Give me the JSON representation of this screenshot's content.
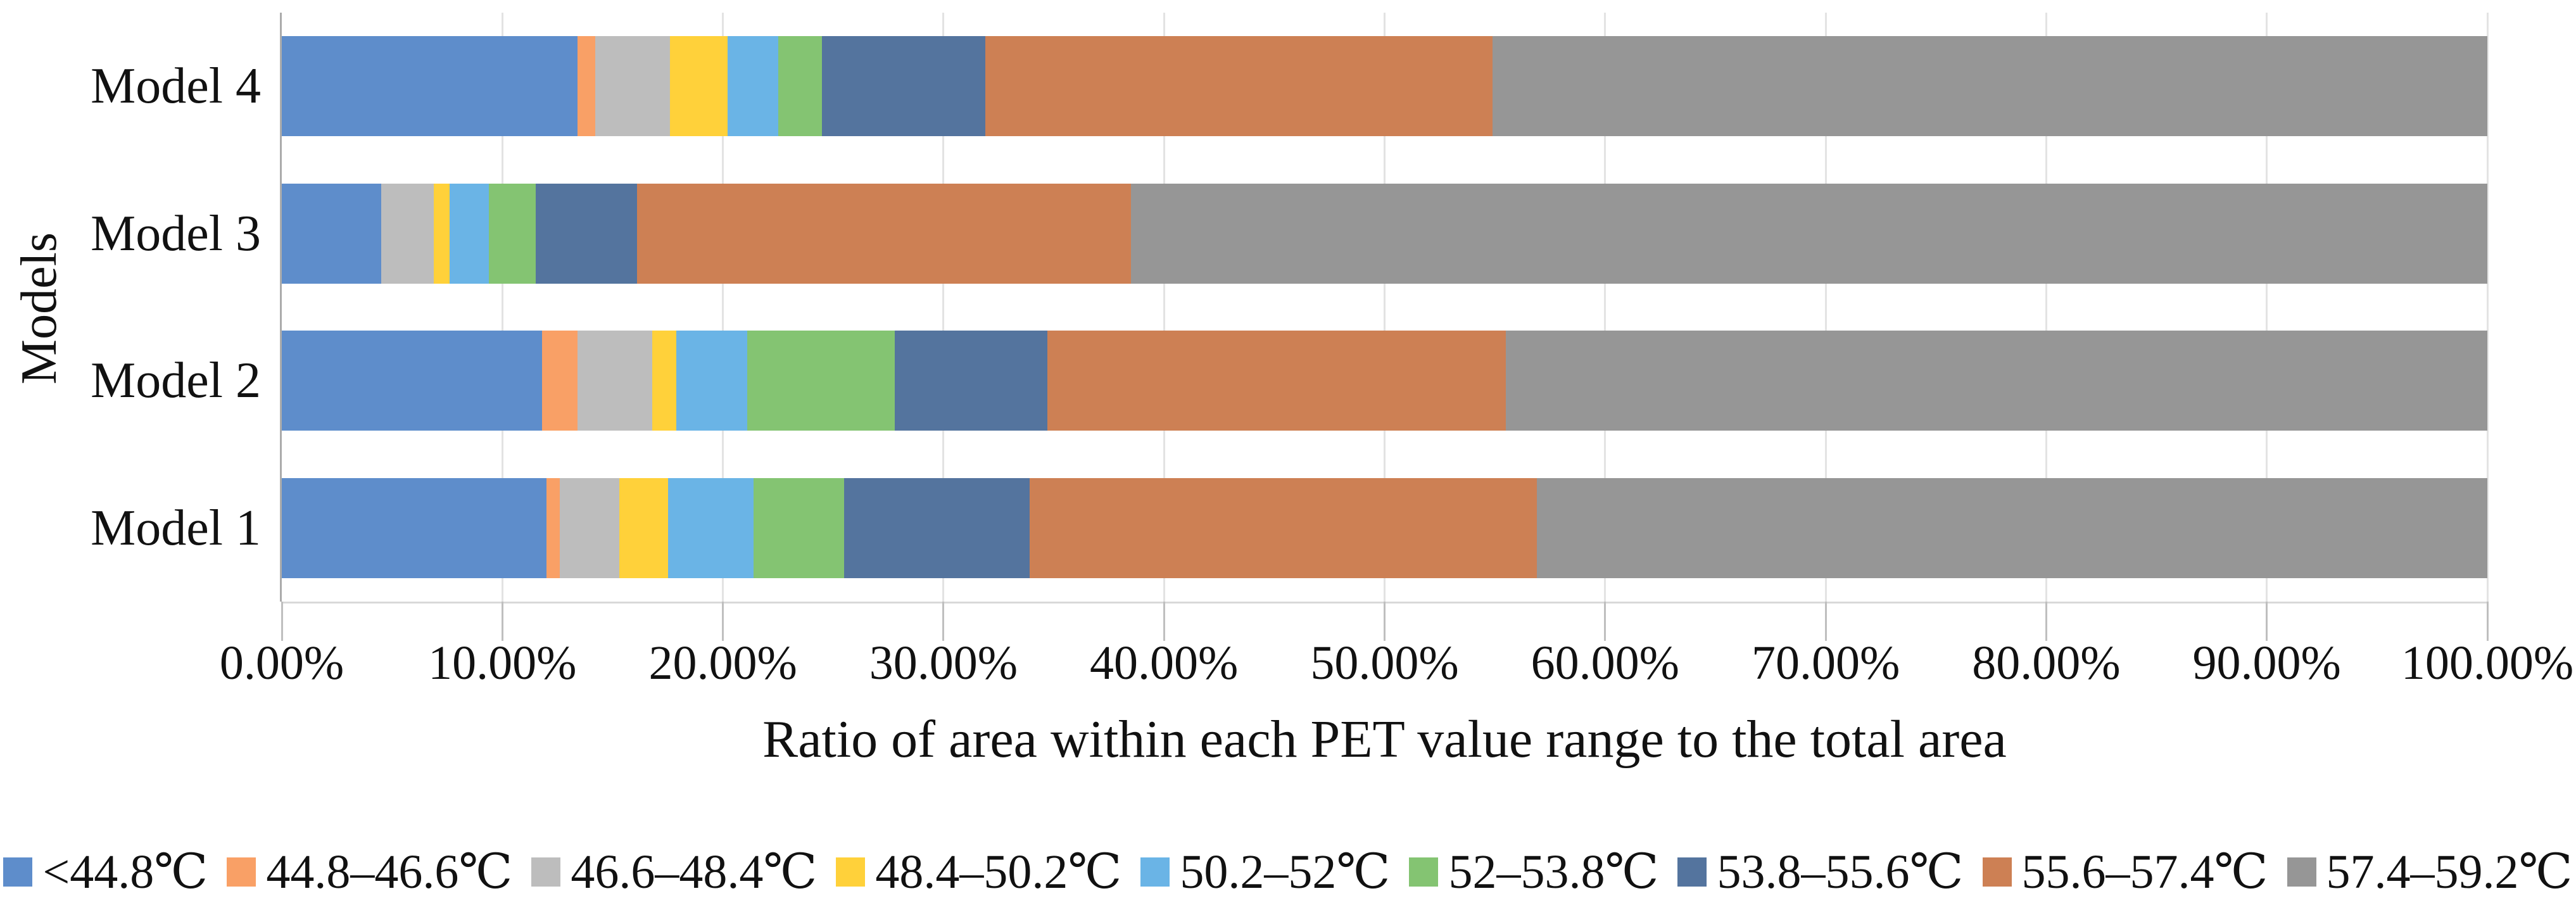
{
  "chart_data": {
    "type": "bar",
    "orientation": "horizontal-stacked-100pct",
    "title": "",
    "xlabel": "Ratio of area within each PET value range to the total area",
    "ylabel": "Models",
    "categories": [
      "Model 4",
      "Model 3",
      "Model 2",
      "Model 1"
    ],
    "x_ticks": [
      "0.00%",
      "10.00%",
      "20.00%",
      "30.00%",
      "40.00%",
      "50.00%",
      "60.00%",
      "70.00%",
      "80.00%",
      "90.00%",
      "100.00%"
    ],
    "xlim": [
      0,
      100
    ],
    "grid": true,
    "legend_position": "bottom",
    "series": [
      {
        "name": "<44.8℃",
        "color": "#5E8DCB",
        "values": [
          13.4,
          4.5,
          11.8,
          12.0
        ]
      },
      {
        "name": "44.8–46.6℃",
        "color": "#F9A066",
        "values": [
          0.8,
          0.0,
          1.6,
          0.6
        ]
      },
      {
        "name": "46.6–48.4℃",
        "color": "#BDBDBD",
        "values": [
          3.4,
          2.4,
          3.4,
          2.7
        ]
      },
      {
        "name": "48.4–50.2℃",
        "color": "#FFD13A",
        "values": [
          2.6,
          0.7,
          1.1,
          2.2
        ]
      },
      {
        "name": "50.2–52℃",
        "color": "#6AB4E6",
        "values": [
          2.3,
          1.8,
          3.2,
          3.9
        ]
      },
      {
        "name": "52–53.8℃",
        "color": "#84C472",
        "values": [
          2.0,
          2.1,
          6.7,
          4.1
        ]
      },
      {
        "name": "53.8–55.6℃",
        "color": "#54749E",
        "values": [
          7.4,
          4.6,
          6.9,
          8.4
        ]
      },
      {
        "name": "55.6–57.4℃",
        "color": "#CD8054",
        "values": [
          23.0,
          22.4,
          20.8,
          23.0
        ]
      },
      {
        "name": "57.4–59.2℃",
        "color": "#969696",
        "values": [
          45.1,
          61.5,
          44.5,
          43.1
        ]
      }
    ]
  }
}
